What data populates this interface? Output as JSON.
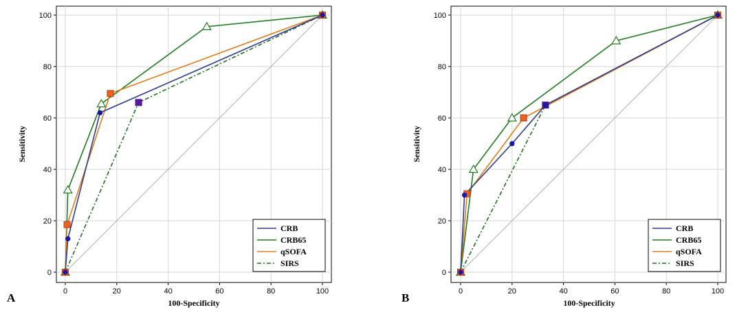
{
  "colors": {
    "CRB": "#2b3a8c",
    "CRB65": "#1e7b1e",
    "qSOFA": "#e07b1a",
    "SIRS": "#1e6b1e",
    "grid": "#d6d6d6",
    "diagonal": "#b0b0b0",
    "marker_crb": "#1a1aa0",
    "marker_qsofa": "#f06020",
    "marker_sirs": "#5a1aa0",
    "marker_crb65_fill": "#ffffff"
  },
  "chart_data": [
    {
      "type": "line",
      "panel_label": "A",
      "xlabel": "100-Specificity",
      "ylabel": "Sensitivity",
      "xlim": [
        0,
        100
      ],
      "ylim": [
        0,
        100
      ],
      "xticks": [
        "0",
        "20",
        "40",
        "60",
        "80",
        "100"
      ],
      "yticks": [
        "0",
        "20",
        "40",
        "60",
        "80",
        "100"
      ],
      "grid": true,
      "legend_position": "bottom-right",
      "series": [
        {
          "name": "CRB",
          "x": [
            0,
            1,
            13.5,
            100
          ],
          "y": [
            0,
            13,
            62,
            100
          ]
        },
        {
          "name": "CRB65",
          "x": [
            0,
            1,
            14,
            55,
            100
          ],
          "y": [
            0,
            32,
            65.5,
            95.5,
            100
          ]
        },
        {
          "name": "qSOFA",
          "x": [
            0,
            0.7,
            17.5,
            100
          ],
          "y": [
            0,
            18.5,
            69.5,
            100
          ]
        },
        {
          "name": "SIRS",
          "x": [
            0,
            28.5,
            100
          ],
          "y": [
            0,
            66,
            100
          ]
        }
      ]
    },
    {
      "type": "line",
      "panel_label": "B",
      "xlabel": "100-Specificity",
      "ylabel": "Sensitivity",
      "xlim": [
        0,
        100
      ],
      "ylim": [
        0,
        100
      ],
      "xticks": [
        "0",
        "20",
        "40",
        "60",
        "80",
        "100"
      ],
      "yticks": [
        "0",
        "20",
        "40",
        "60",
        "80",
        "100"
      ],
      "grid": true,
      "legend_position": "bottom-right",
      "series": [
        {
          "name": "CRB",
          "x": [
            0,
            1.5,
            20,
            33,
            100
          ],
          "y": [
            0,
            30,
            50,
            65,
            100
          ]
        },
        {
          "name": "CRB65",
          "x": [
            0,
            5,
            20,
            60.5,
            100
          ],
          "y": [
            0,
            40,
            60,
            90,
            100
          ]
        },
        {
          "name": "qSOFA",
          "x": [
            0,
            2.5,
            24.5,
            100
          ],
          "y": [
            0,
            30.5,
            60,
            100
          ]
        },
        {
          "name": "SIRS",
          "x": [
            0,
            33,
            100
          ],
          "y": [
            0,
            65,
            100
          ]
        }
      ]
    }
  ]
}
